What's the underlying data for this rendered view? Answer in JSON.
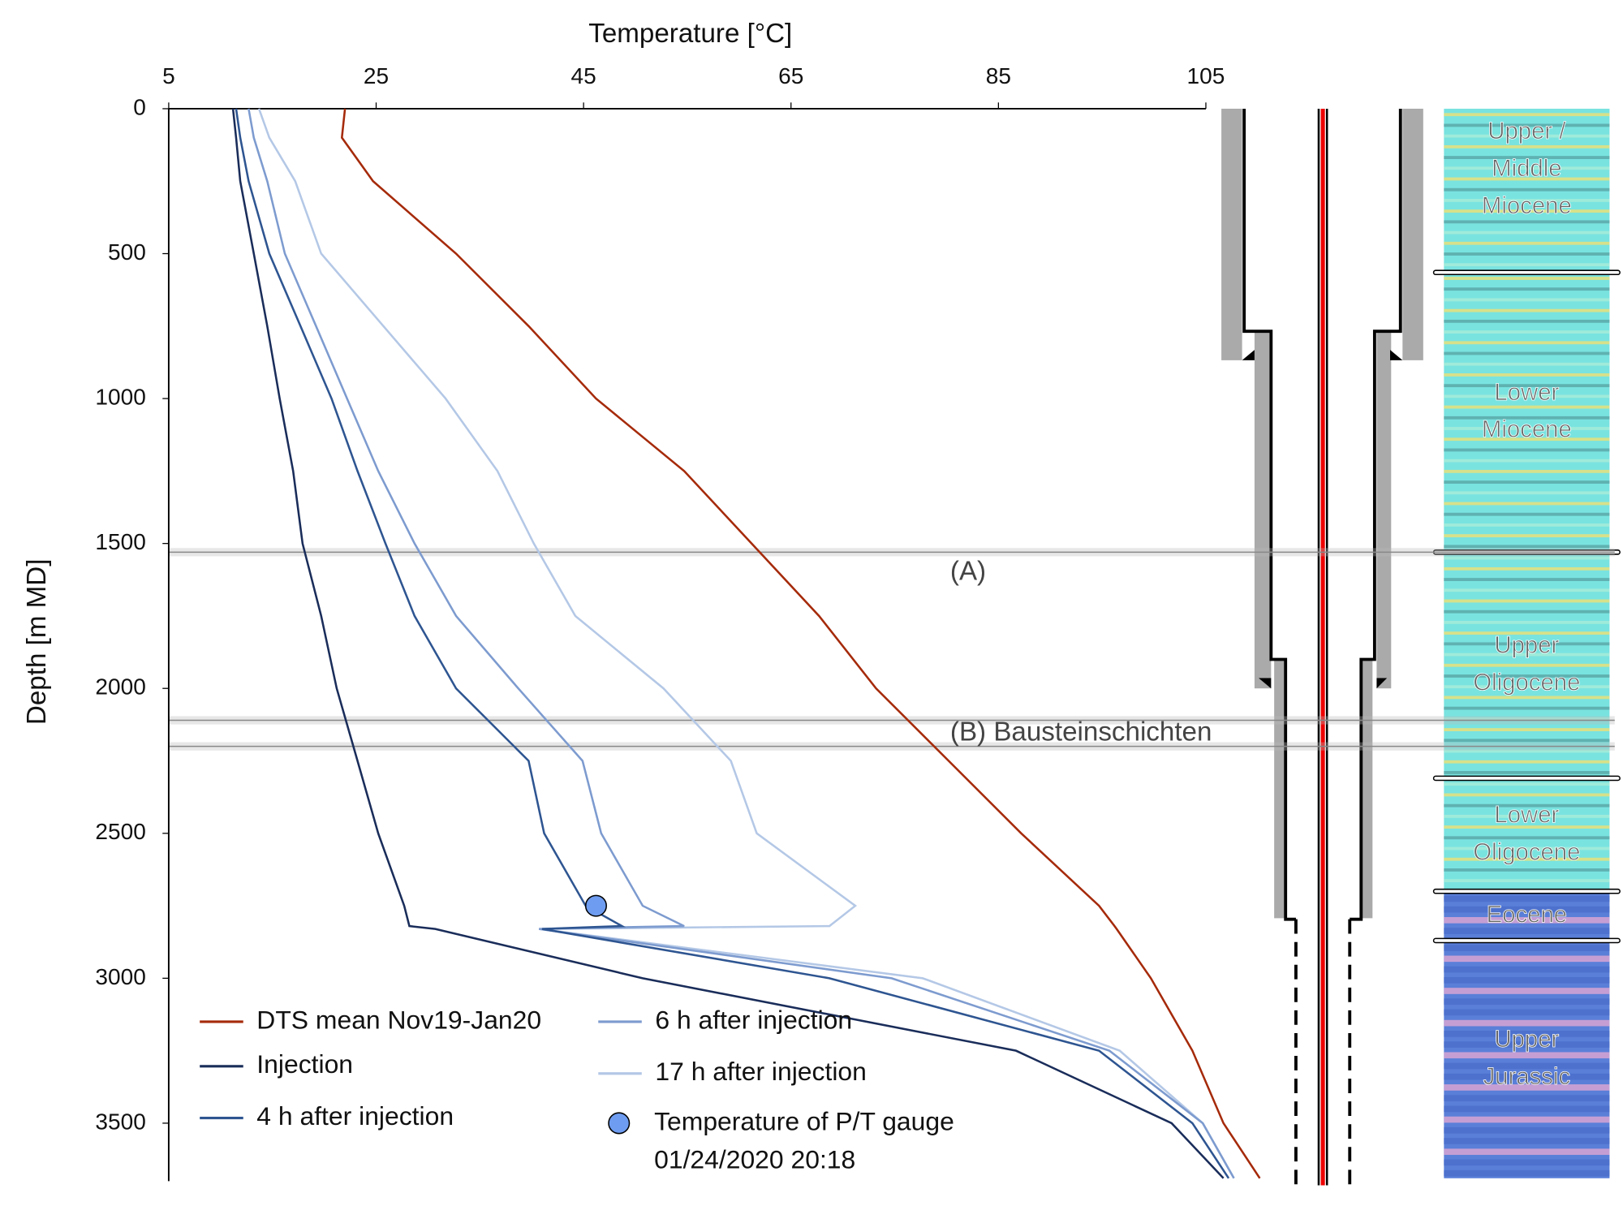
{
  "chart_data": {
    "type": "line",
    "x_label": "Temperature [°C]",
    "y_label": "Depth [m MD]",
    "xlim": [
      5,
      105
    ],
    "xticks": [
      5,
      25,
      45,
      65,
      85,
      105
    ],
    "ylim": [
      0,
      3700
    ],
    "yticks": [
      0,
      500,
      1000,
      1500,
      2000,
      2500,
      3000,
      3500
    ],
    "depth": [
      0,
      100,
      250,
      500,
      750,
      1000,
      1250,
      1500,
      1750,
      2000,
      2250,
      2500,
      2750,
      2820,
      2830,
      3000,
      3250,
      3500,
      3690
    ],
    "series": [
      {
        "name": "DTS mean Nov19-Jan20",
        "color": "#a52a0a",
        "values": [
          22,
          21.7,
          24.7,
          32.7,
          39.7,
          46.2,
          54.7,
          61.2,
          67.7,
          73.2,
          80.2,
          87.2,
          94.7,
          96.2,
          96.4,
          99.7,
          103.7,
          106.7,
          110.2
        ]
      },
      {
        "name": "Injection",
        "color": "#1a2d5a",
        "values": [
          11.2,
          11.5,
          11.9,
          13.2,
          14.5,
          15.7,
          17,
          17.9,
          19.7,
          21.2,
          23.2,
          25.2,
          27.7,
          28.2,
          30.7,
          50.7,
          86.7,
          101.7,
          106.7
        ]
      },
      {
        "name": "4 h after injection",
        "color": "#2e5591",
        "values": [
          11.5,
          11.9,
          12.7,
          14.7,
          17.7,
          20.7,
          23.2,
          25.9,
          28.7,
          32.7,
          39.7,
          41.2,
          45.2,
          48.7,
          41,
          68.7,
          94.7,
          103.7,
          107.2
        ]
      },
      {
        "name": "6 h after injection",
        "color": "#7d9bcf",
        "values": [
          12.7,
          13.2,
          14.5,
          16.2,
          19.2,
          22.2,
          25.2,
          28.7,
          32.7,
          38.7,
          44.9,
          46.7,
          50.7,
          54.7,
          40.7,
          74.7,
          95.7,
          104.7,
          107.7
        ]
      },
      {
        "name": "17 h after injection",
        "color": "#b4c8e6",
        "values": [
          13.7,
          14.7,
          17.2,
          19.7,
          25.7,
          31.7,
          36.7,
          40.2,
          44.2,
          52.7,
          59.2,
          61.7,
          71.2,
          68.7,
          40.7,
          77.7,
          96.7,
          104.7,
          107.7
        ]
      }
    ],
    "gauge": {
      "label": [
        "Temperature of P/T gauge",
        "01/24/2020 20:18"
      ],
      "color": "#6e9cf0",
      "temperature": 46.2,
      "depth": 2750
    },
    "zones": [
      {
        "label": "(A)",
        "depths": [
          1530
        ]
      },
      {
        "label": "(B) Bausteinschichten",
        "depths": [
          2110,
          2200
        ]
      }
    ],
    "formations": [
      {
        "label": [
          "Upper /",
          "Middle",
          "Miocene"
        ],
        "top": 0,
        "base": 565
      },
      {
        "label": [
          "Lower",
          "Miocene"
        ],
        "top": 565,
        "base": 1530
      },
      {
        "label": [
          "Upper",
          "Oligocene"
        ],
        "top": 1530,
        "base": 2310
      },
      {
        "label": [
          "Lower",
          "Oligocene"
        ],
        "top": 2310,
        "base": 2700
      },
      {
        "label": [
          "Eocene"
        ],
        "top": 2700,
        "base": 2870
      },
      {
        "label": [
          "Upper",
          "Jurassic"
        ],
        "top": 2870,
        "base": 3690
      }
    ]
  }
}
